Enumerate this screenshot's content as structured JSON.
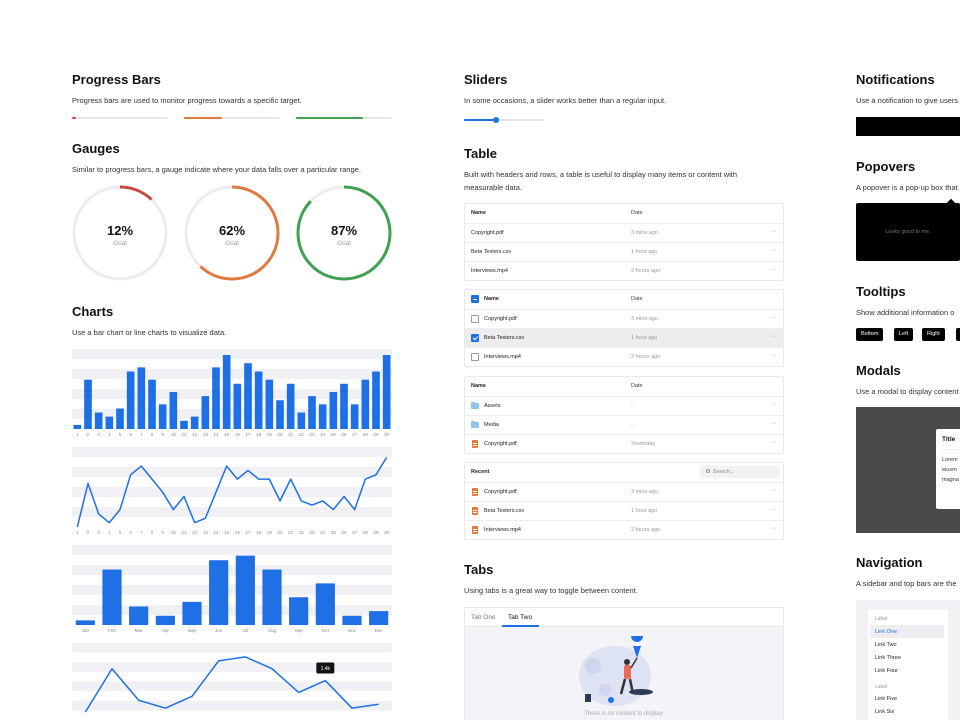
{
  "progress_bars": {
    "title": "Progress Bars",
    "description": "Progress bars are used to monitor progress towards a specific target.",
    "bars": [
      {
        "value": 0.04,
        "color": "#d9443e"
      },
      {
        "value": 0.4,
        "color": "#e07a3f"
      },
      {
        "value": 0.7,
        "color": "#3fa151"
      }
    ]
  },
  "gauges": {
    "title": "Gauges",
    "description": "Similar to progress bars, a gauge indicate where your data falls over a particular range.",
    "items": [
      {
        "value": "12%",
        "fraction": 0.12,
        "label": "Goal",
        "color": "#c9473f"
      },
      {
        "value": "62%",
        "fraction": 0.62,
        "label": "Goal",
        "color": "#e07a3f"
      },
      {
        "value": "87%",
        "fraction": 0.87,
        "label": "Goal",
        "color": "#3fa151"
      }
    ]
  },
  "charts": {
    "title": "Charts",
    "description": "Use a bar chart or line charts to visualize data."
  },
  "chart_data": [
    {
      "type": "bar",
      "categories": [
        "1",
        "2",
        "3",
        "4",
        "5",
        "6",
        "7",
        "8",
        "9",
        "10",
        "11",
        "12",
        "13",
        "14",
        "15",
        "16",
        "17",
        "18",
        "19",
        "20",
        "21",
        "22",
        "23",
        "24",
        "25",
        "26",
        "27",
        "28",
        "29",
        "30"
      ],
      "values": [
        1,
        12,
        4,
        3,
        5,
        14,
        15,
        12,
        6,
        9,
        2,
        3,
        8,
        15,
        18,
        11,
        16,
        14,
        12,
        7,
        11,
        4,
        8,
        6,
        9,
        11,
        6,
        12,
        14,
        18
      ],
      "ylim": [
        0,
        18
      ],
      "grid": true,
      "color": "#1f6fe5"
    },
    {
      "type": "line",
      "x": [
        "1",
        "2",
        "3",
        "4",
        "5",
        "6",
        "7",
        "8",
        "9",
        "10",
        "11",
        "12",
        "13",
        "14",
        "15",
        "16",
        "17",
        "18",
        "19",
        "20",
        "21",
        "22",
        "23",
        "24",
        "25",
        "26",
        "27",
        "28",
        "29",
        "30"
      ],
      "values": [
        0,
        10,
        3,
        1,
        4,
        12,
        14,
        11,
        8,
        4,
        7,
        1,
        2,
        8,
        14,
        11,
        13,
        11,
        11,
        6,
        11,
        6,
        5,
        6,
        4,
        7,
        4,
        11,
        12,
        16
      ],
      "ylim": [
        0,
        17
      ],
      "grid": true,
      "color": "#1f6fe5"
    },
    {
      "type": "bar",
      "categories": [
        "Jan",
        "Feb",
        "Mar",
        "Apr",
        "May",
        "Jun",
        "Jul",
        "Aug",
        "Sep",
        "Oct",
        "Nov",
        "Dec"
      ],
      "values": [
        1,
        12,
        4,
        2,
        5,
        14,
        15,
        12,
        6,
        9,
        2,
        3
      ],
      "ylim": [
        0,
        16
      ],
      "grid": true,
      "color": "#1f6fe5"
    },
    {
      "type": "line",
      "x": [
        "1",
        "2",
        "3",
        "4",
        "5",
        "6",
        "7",
        "8",
        "9",
        "10",
        "11",
        "12"
      ],
      "values": [
        2,
        13,
        5,
        3,
        6,
        15,
        16,
        13,
        7,
        10,
        3,
        4
      ],
      "ylim": [
        0,
        18
      ],
      "grid": true,
      "color": "#1f6fe5",
      "annotation": {
        "index": 9,
        "label": "1.4k"
      }
    }
  ],
  "sliders": {
    "title": "Sliders",
    "description": "In some occasions, a slider works better than a regular input.",
    "value": 0.4
  },
  "table": {
    "title": "Table",
    "description": "Built with headers and rows, a table is useful to display many items or content with measurable data.",
    "t1": {
      "header": {
        "name": "Name",
        "date": "Date"
      },
      "rows": [
        {
          "name": "Copyright.pdf",
          "date": "3 mins ago"
        },
        {
          "name": "Beta Testers.csv",
          "date": "1 hour ago"
        },
        {
          "name": "Interviews.mp4",
          "date": "2 hours ago"
        }
      ]
    },
    "t2": {
      "header": {
        "name": "Name",
        "date": "Date"
      },
      "rows": [
        {
          "name": "Copyright.pdf",
          "date": "3 mins ago"
        },
        {
          "name": "Beta Testers.csv",
          "date": "1 hour ago"
        },
        {
          "name": "Interviews.mp4",
          "date": "2 hours ago"
        }
      ]
    },
    "t3": {
      "header": {
        "name": "Name",
        "date": "Date"
      },
      "rows": [
        {
          "name": "Assets",
          "date": "-"
        },
        {
          "name": "Media",
          "date": "-"
        },
        {
          "name": "Copyright.pdf",
          "date": "Yesterday"
        }
      ]
    },
    "t4": {
      "header": {
        "name": "Recent",
        "search_placeholder": "Search..."
      },
      "rows": [
        {
          "name": "Copyright.pdf",
          "date": "3 mins ago"
        },
        {
          "name": "Beta Testers.csv",
          "date": "1 hour ago"
        },
        {
          "name": "Interviews.mp4",
          "date": "2 hours ago"
        }
      ]
    },
    "more_glyph": "···"
  },
  "tabs": {
    "title": "Tabs",
    "description": "Using tabs is a great way to toggle between content.",
    "items": [
      "Tab One",
      "Tab Two"
    ],
    "empty_text": "There is no content to display."
  },
  "notifications": {
    "title": "Notifications",
    "description": "Use a notification to give users"
  },
  "popovers": {
    "title": "Popovers",
    "description": "A popover is a pop-up box that",
    "content": "Looks good to me."
  },
  "tooltips": {
    "title": "Tooltips",
    "description": "Show additional information o",
    "items": [
      "Bottom",
      "Left",
      "Right"
    ]
  },
  "modals": {
    "title": "Modals",
    "description": "Use a modal to display content",
    "modal_title": "Title",
    "body_lines": [
      "Lorem",
      "eiusm",
      "magna"
    ]
  },
  "navigation": {
    "title": "Navigation",
    "description": "A sidebar and top bars are the",
    "group1_label": "Label",
    "group1_links": [
      "Link One",
      "Link Two",
      "Link Three",
      "Link Four"
    ],
    "group2_label": "Label",
    "group2_links": [
      "Link Five",
      "Link Six"
    ]
  }
}
